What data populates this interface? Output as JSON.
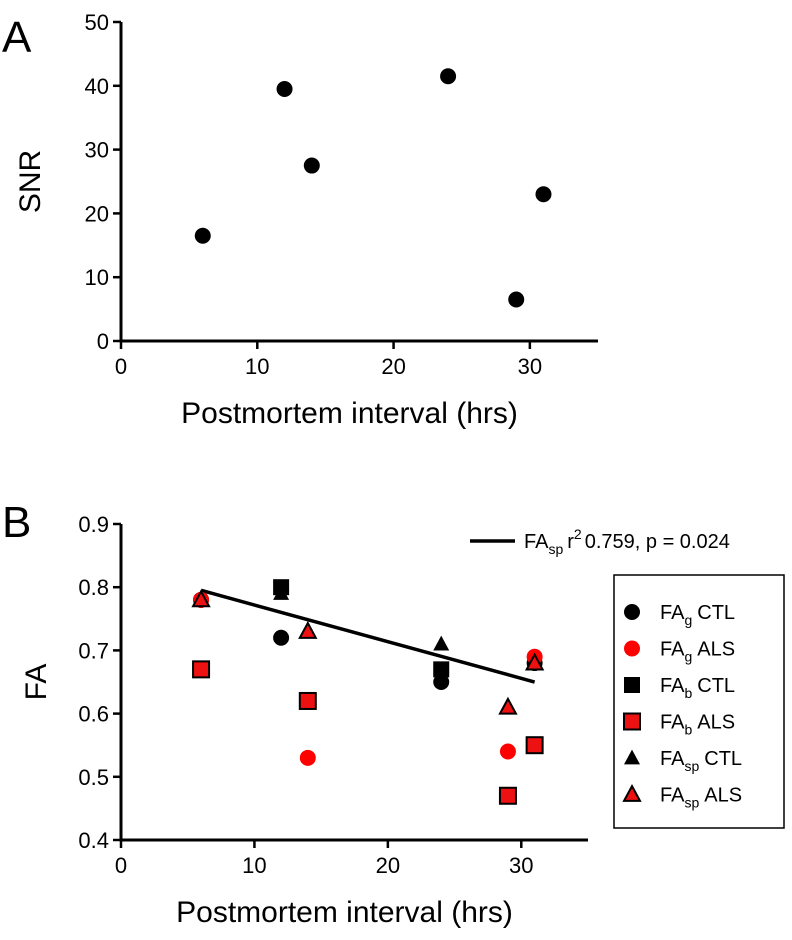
{
  "chart_data": [
    {
      "panel": "A",
      "type": "scatter",
      "xlabel": "Postmortem interval (hrs)",
      "ylabel": "SNR",
      "xlim": [
        0,
        35
      ],
      "ylim": [
        0,
        50
      ],
      "xticks": [
        0,
        10,
        20,
        30
      ],
      "yticks": [
        0,
        10,
        20,
        30,
        40,
        50
      ],
      "series": [
        {
          "name": "SNR",
          "color": "#000000",
          "marker": "circle",
          "points": [
            {
              "x": 6,
              "y": 16.5
            },
            {
              "x": 12,
              "y": 39.5
            },
            {
              "x": 14,
              "y": 27.5
            },
            {
              "x": 24,
              "y": 41.5
            },
            {
              "x": 29,
              "y": 6.5
            },
            {
              "x": 31,
              "y": 23
            }
          ]
        }
      ]
    },
    {
      "panel": "B",
      "type": "scatter",
      "xlabel": "Postmortem interval (hrs)",
      "ylabel": "FA",
      "xlim": [
        0,
        35
      ],
      "ylim": [
        0.4,
        0.9
      ],
      "xticks": [
        0,
        10,
        20,
        30
      ],
      "yticks": [
        0.4,
        0.5,
        0.6,
        0.7,
        0.8,
        0.9
      ],
      "series": [
        {
          "name": "FAg CTL",
          "base": "FA",
          "sub": "g",
          "group": "CTL",
          "marker": "circle",
          "fill": "#000000",
          "stroke": "none",
          "points": [
            {
              "x": 6,
              "y": 0.78
            },
            {
              "x": 12,
              "y": 0.72
            },
            {
              "x": 24,
              "y": 0.65
            },
            {
              "x": 31,
              "y": 0.68
            }
          ]
        },
        {
          "name": "FAg ALS",
          "base": "FA",
          "sub": "g",
          "group": "ALS",
          "marker": "circle",
          "fill": "#ff0000",
          "stroke": "none",
          "points": [
            {
              "x": 6,
              "y": 0.78
            },
            {
              "x": 14,
              "y": 0.53
            },
            {
              "x": 29,
              "y": 0.54
            },
            {
              "x": 31,
              "y": 0.69
            }
          ]
        },
        {
          "name": "FAb CTL",
          "base": "FA",
          "sub": "b",
          "group": "CTL",
          "marker": "square",
          "fill": "#000000",
          "stroke": "none",
          "points": [
            {
              "x": 12,
              "y": 0.8
            },
            {
              "x": 24,
              "y": 0.67
            }
          ]
        },
        {
          "name": "FAb ALS",
          "base": "FA",
          "sub": "b",
          "group": "ALS",
          "marker": "square",
          "fill": "#ee1111",
          "stroke": "#000000",
          "points": [
            {
              "x": 6,
              "y": 0.67
            },
            {
              "x": 14,
              "y": 0.62
            },
            {
              "x": 29,
              "y": 0.47
            },
            {
              "x": 31,
              "y": 0.55
            }
          ]
        },
        {
          "name": "FAsp CTL",
          "base": "FA",
          "sub": "sp",
          "group": "CTL",
          "marker": "triangle",
          "fill": "#000000",
          "stroke": "none",
          "points": [
            {
              "x": 12,
              "y": 0.79
            },
            {
              "x": 24,
              "y": 0.71
            }
          ]
        },
        {
          "name": "FAsp ALS",
          "base": "FA",
          "sub": "sp",
          "group": "ALS",
          "marker": "triangle",
          "fill": "#ee1111",
          "stroke": "#000000",
          "points": [
            {
              "x": 6,
              "y": 0.78
            },
            {
              "x": 14,
              "y": 0.73
            },
            {
              "x": 29,
              "y": 0.61
            },
            {
              "x": 31,
              "y": 0.68
            }
          ]
        }
      ],
      "fit_line": {
        "base": "FA",
        "sub": "sp",
        "r2_label": "r",
        "r2_sup": "2",
        "r2_value": "0.759",
        "p_text": ", p = 0.024",
        "x1": 6,
        "y1": 0.795,
        "x2": 31,
        "y2": 0.65
      }
    }
  ]
}
